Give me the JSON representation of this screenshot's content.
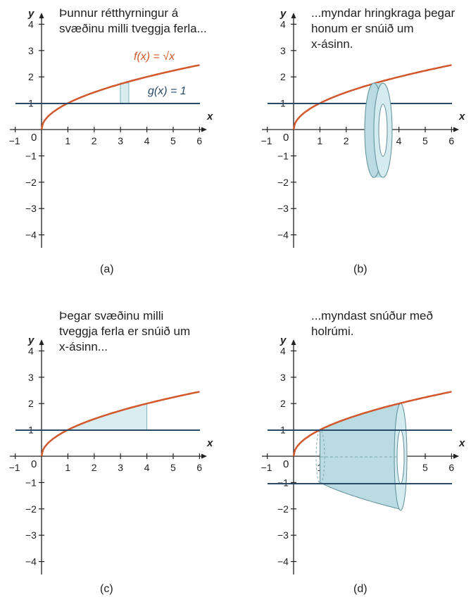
{
  "colors": {
    "axis": "#222222",
    "f_curve": "#d2572a",
    "g_line": "#2a4a6a",
    "fill": "#d9ecef",
    "fill_stroke": "#7fb3bf",
    "solid": "#b9dbe1",
    "solid_dark": "#8fc1cb"
  },
  "axes": {
    "x_label": "x",
    "y_label": "y",
    "origin_label": "0",
    "x_ticks": [
      "−1",
      "1",
      "2",
      "3",
      "4",
      "5",
      "6"
    ],
    "y_ticks": [
      "4",
      "3",
      "2",
      "1",
      "−1",
      "−2",
      "−3",
      "−4"
    ]
  },
  "panels": [
    {
      "id": "a",
      "caption": "Þunnur rétthyrningur á\nsvæðinu milli tveggja ferla...",
      "label": "(a)",
      "f_label": "f(x) = √x",
      "g_label": "g(x) = 1"
    },
    {
      "id": "b",
      "caption": "...myndar hringkraga þegar\nhonum er snúið um\nx-ásinn.",
      "label": "(b)"
    },
    {
      "id": "c",
      "caption": "Þegar svæðinu milli\ntveggja ferla er snúið um\nx-ásinn...",
      "label": "(c)"
    },
    {
      "id": "d",
      "caption": "...myndast snúður með\nholrúmi.",
      "label": "(d)"
    }
  ]
}
